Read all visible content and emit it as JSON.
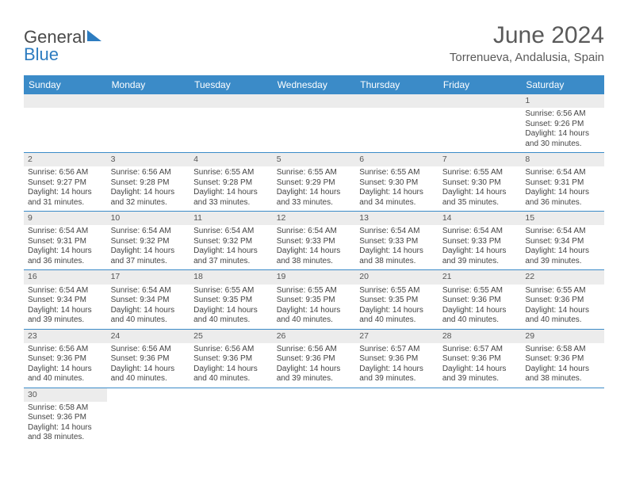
{
  "logo": {
    "text1": "General",
    "text2": "Blue"
  },
  "header": {
    "month_title": "June 2024",
    "location": "Torrenueva, Andalusia, Spain"
  },
  "colors": {
    "header_bg": "#3b8bc8",
    "header_fg": "#ffffff",
    "daynum_bg": "#ececec",
    "row_border": "#3b8bc8",
    "text": "#444444",
    "logo_gray": "#4a4a4a",
    "logo_blue": "#2d7cc0"
  },
  "weekdays": [
    "Sunday",
    "Monday",
    "Tuesday",
    "Wednesday",
    "Thursday",
    "Friday",
    "Saturday"
  ],
  "weeks": [
    [
      null,
      null,
      null,
      null,
      null,
      null,
      {
        "n": "1",
        "sr": "Sunrise: 6:56 AM",
        "ss": "Sunset: 9:26 PM",
        "dl": "Daylight: 14 hours and 30 minutes."
      }
    ],
    [
      {
        "n": "2",
        "sr": "Sunrise: 6:56 AM",
        "ss": "Sunset: 9:27 PM",
        "dl": "Daylight: 14 hours and 31 minutes."
      },
      {
        "n": "3",
        "sr": "Sunrise: 6:56 AM",
        "ss": "Sunset: 9:28 PM",
        "dl": "Daylight: 14 hours and 32 minutes."
      },
      {
        "n": "4",
        "sr": "Sunrise: 6:55 AM",
        "ss": "Sunset: 9:28 PM",
        "dl": "Daylight: 14 hours and 33 minutes."
      },
      {
        "n": "5",
        "sr": "Sunrise: 6:55 AM",
        "ss": "Sunset: 9:29 PM",
        "dl": "Daylight: 14 hours and 33 minutes."
      },
      {
        "n": "6",
        "sr": "Sunrise: 6:55 AM",
        "ss": "Sunset: 9:30 PM",
        "dl": "Daylight: 14 hours and 34 minutes."
      },
      {
        "n": "7",
        "sr": "Sunrise: 6:55 AM",
        "ss": "Sunset: 9:30 PM",
        "dl": "Daylight: 14 hours and 35 minutes."
      },
      {
        "n": "8",
        "sr": "Sunrise: 6:54 AM",
        "ss": "Sunset: 9:31 PM",
        "dl": "Daylight: 14 hours and 36 minutes."
      }
    ],
    [
      {
        "n": "9",
        "sr": "Sunrise: 6:54 AM",
        "ss": "Sunset: 9:31 PM",
        "dl": "Daylight: 14 hours and 36 minutes."
      },
      {
        "n": "10",
        "sr": "Sunrise: 6:54 AM",
        "ss": "Sunset: 9:32 PM",
        "dl": "Daylight: 14 hours and 37 minutes."
      },
      {
        "n": "11",
        "sr": "Sunrise: 6:54 AM",
        "ss": "Sunset: 9:32 PM",
        "dl": "Daylight: 14 hours and 37 minutes."
      },
      {
        "n": "12",
        "sr": "Sunrise: 6:54 AM",
        "ss": "Sunset: 9:33 PM",
        "dl": "Daylight: 14 hours and 38 minutes."
      },
      {
        "n": "13",
        "sr": "Sunrise: 6:54 AM",
        "ss": "Sunset: 9:33 PM",
        "dl": "Daylight: 14 hours and 38 minutes."
      },
      {
        "n": "14",
        "sr": "Sunrise: 6:54 AM",
        "ss": "Sunset: 9:33 PM",
        "dl": "Daylight: 14 hours and 39 minutes."
      },
      {
        "n": "15",
        "sr": "Sunrise: 6:54 AM",
        "ss": "Sunset: 9:34 PM",
        "dl": "Daylight: 14 hours and 39 minutes."
      }
    ],
    [
      {
        "n": "16",
        "sr": "Sunrise: 6:54 AM",
        "ss": "Sunset: 9:34 PM",
        "dl": "Daylight: 14 hours and 39 minutes."
      },
      {
        "n": "17",
        "sr": "Sunrise: 6:54 AM",
        "ss": "Sunset: 9:34 PM",
        "dl": "Daylight: 14 hours and 40 minutes."
      },
      {
        "n": "18",
        "sr": "Sunrise: 6:55 AM",
        "ss": "Sunset: 9:35 PM",
        "dl": "Daylight: 14 hours and 40 minutes."
      },
      {
        "n": "19",
        "sr": "Sunrise: 6:55 AM",
        "ss": "Sunset: 9:35 PM",
        "dl": "Daylight: 14 hours and 40 minutes."
      },
      {
        "n": "20",
        "sr": "Sunrise: 6:55 AM",
        "ss": "Sunset: 9:35 PM",
        "dl": "Daylight: 14 hours and 40 minutes."
      },
      {
        "n": "21",
        "sr": "Sunrise: 6:55 AM",
        "ss": "Sunset: 9:36 PM",
        "dl": "Daylight: 14 hours and 40 minutes."
      },
      {
        "n": "22",
        "sr": "Sunrise: 6:55 AM",
        "ss": "Sunset: 9:36 PM",
        "dl": "Daylight: 14 hours and 40 minutes."
      }
    ],
    [
      {
        "n": "23",
        "sr": "Sunrise: 6:56 AM",
        "ss": "Sunset: 9:36 PM",
        "dl": "Daylight: 14 hours and 40 minutes."
      },
      {
        "n": "24",
        "sr": "Sunrise: 6:56 AM",
        "ss": "Sunset: 9:36 PM",
        "dl": "Daylight: 14 hours and 40 minutes."
      },
      {
        "n": "25",
        "sr": "Sunrise: 6:56 AM",
        "ss": "Sunset: 9:36 PM",
        "dl": "Daylight: 14 hours and 40 minutes."
      },
      {
        "n": "26",
        "sr": "Sunrise: 6:56 AM",
        "ss": "Sunset: 9:36 PM",
        "dl": "Daylight: 14 hours and 39 minutes."
      },
      {
        "n": "27",
        "sr": "Sunrise: 6:57 AM",
        "ss": "Sunset: 9:36 PM",
        "dl": "Daylight: 14 hours and 39 minutes."
      },
      {
        "n": "28",
        "sr": "Sunrise: 6:57 AM",
        "ss": "Sunset: 9:36 PM",
        "dl": "Daylight: 14 hours and 39 minutes."
      },
      {
        "n": "29",
        "sr": "Sunrise: 6:58 AM",
        "ss": "Sunset: 9:36 PM",
        "dl": "Daylight: 14 hours and 38 minutes."
      }
    ],
    [
      {
        "n": "30",
        "sr": "Sunrise: 6:58 AM",
        "ss": "Sunset: 9:36 PM",
        "dl": "Daylight: 14 hours and 38 minutes."
      },
      null,
      null,
      null,
      null,
      null,
      null
    ]
  ]
}
